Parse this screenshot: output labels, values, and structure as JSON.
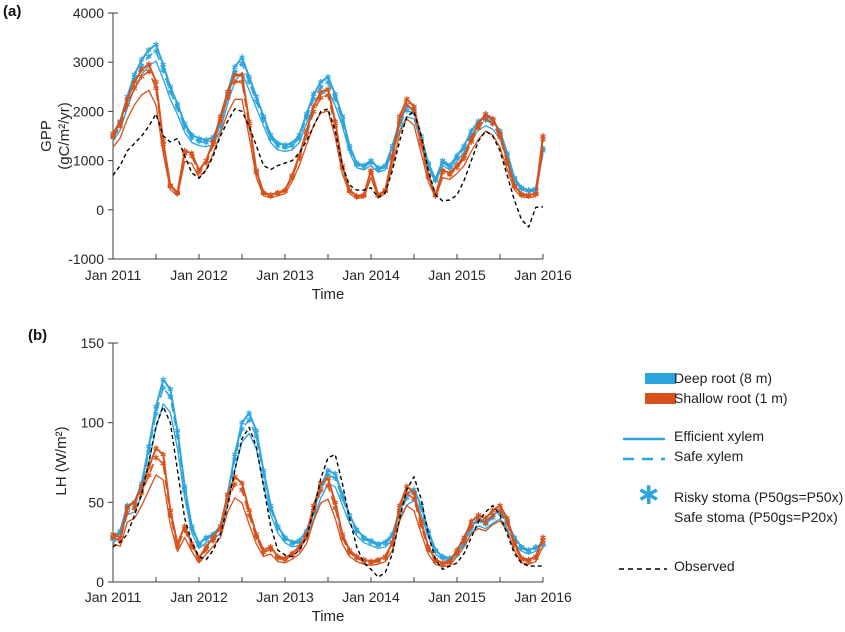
{
  "figure": {
    "panel_a_label": "(a)",
    "panel_b_label": "(b)"
  },
  "colors": {
    "deep_root_blue": "#2CA5DE",
    "shallow_root_orange": "#D5521C",
    "observed_black": "#000000",
    "axis_gray": "#3d3d3d",
    "tick_text": "#262626"
  },
  "legend": {
    "deep_root": "Deep root (8 m)",
    "shallow_root": "Shallow root  (1 m)",
    "efficient_xylem": "Efficient xylem",
    "safe_xylem": "Safe xylem",
    "risky_stoma": "Risky stoma (P50gs=P50x)",
    "safe_stoma": "Safe stoma (P50gs=P20x)",
    "observed": "Observed",
    "asterisk_glyph": "∗"
  },
  "chart_data": [
    {
      "type": "line",
      "panel": "a",
      "ylabel_line1": "GPP",
      "ylabel_line2": "(gC/m²/yr)",
      "ylabel": "GPP (gC/m²/yr)",
      "xlabel": "Time",
      "x_tick_labels": [
        "Jan 2011",
        "Jan 2012",
        "Jan 2013",
        "Jan 2014",
        "Jan 2015",
        "Jan 2016"
      ],
      "x_minor_tick_every_months": 6,
      "x_total_months": 60,
      "ylim": [
        -1000,
        4000
      ],
      "yticks": [
        4000,
        3000,
        2000,
        1000,
        0,
        -1000
      ],
      "grid": false,
      "series": [
        {
          "id": "deep-safe-stoma",
          "name": "Deep root, efficient xylem, safe stoma",
          "color": "deep_root_blue",
          "style": "solid",
          "marker": "none",
          "width": 1.3,
          "derive_from": "deep-risky",
          "scale": 0.9
        },
        {
          "id": "deep-safexylem-risky",
          "name": "Deep root, safe xylem, risky stoma",
          "color": "deep_root_blue",
          "style": "dashed",
          "marker": "asterisk",
          "width": 1.6,
          "derive_from": "deep-risky",
          "scale": 0.96
        },
        {
          "id": "deep-risky",
          "name": "Deep root, efficient xylem, risky stoma",
          "color": "deep_root_blue",
          "style": "solid",
          "marker": "asterisk",
          "width": 2,
          "values": [
            1550,
            1800,
            2300,
            2750,
            3050,
            3250,
            3360,
            2950,
            2500,
            2150,
            1750,
            1520,
            1450,
            1420,
            1480,
            1800,
            2400,
            2900,
            3100,
            2700,
            2300,
            1900,
            1520,
            1350,
            1320,
            1350,
            1520,
            1950,
            2350,
            2600,
            2700,
            2350,
            1900,
            1300,
            950,
            900,
            1000,
            850,
            900,
            1300,
            1800,
            2100,
            2050,
            1500,
            950,
            620,
            1000,
            900,
            1100,
            1300,
            1600,
            1800,
            1900,
            1820,
            1600,
            1150,
            650,
            450,
            400,
            430,
            1250
          ]
        },
        {
          "id": "shal-safe-stoma",
          "name": "Shallow root, efficient xylem, safe stoma",
          "color": "shallow_root_orange",
          "style": "solid",
          "marker": "none",
          "width": 1.3,
          "derive_from": "shal-risky",
          "scale": 0.82
        },
        {
          "id": "shal-safexylem-risky",
          "name": "Shallow root, safe xylem, risky stoma",
          "color": "shallow_root_orange",
          "style": "dashed",
          "marker": "asterisk",
          "width": 1.6,
          "derive_from": "shal-risky",
          "scale": 0.95
        },
        {
          "id": "shal-risky",
          "name": "Shallow root, efficient xylem, risky stoma",
          "color": "shallow_root_orange",
          "style": "solid",
          "marker": "asterisk",
          "width": 2,
          "values": [
            1550,
            1780,
            2250,
            2600,
            2850,
            2960,
            2600,
            1400,
            500,
            350,
            1200,
            1150,
            800,
            1000,
            1400,
            1900,
            2400,
            2740,
            2740,
            1800,
            800,
            350,
            300,
            350,
            400,
            700,
            1100,
            1600,
            2100,
            2400,
            2450,
            1800,
            900,
            400,
            280,
            300,
            800,
            300,
            400,
            1100,
            1900,
            2250,
            2100,
            1400,
            700,
            300,
            800,
            750,
            900,
            1100,
            1450,
            1750,
            1950,
            1850,
            1550,
            1000,
            500,
            320,
            300,
            330,
            1500
          ]
        },
        {
          "id": "obs-gpp",
          "name": "Observed",
          "color": "observed_black",
          "style": "short-dash",
          "marker": "none",
          "width": 1.4,
          "values": [
            700,
            900,
            1200,
            1350,
            1500,
            1700,
            1950,
            1500,
            1380,
            1450,
            1100,
            750,
            640,
            800,
            1100,
            1500,
            1800,
            2050,
            2000,
            1700,
            1300,
            900,
            820,
            900,
            950,
            1000,
            1150,
            1400,
            1700,
            2000,
            2050,
            1600,
            900,
            500,
            400,
            400,
            450,
            250,
            350,
            800,
            1400,
            1900,
            2000,
            1500,
            800,
            300,
            180,
            200,
            300,
            600,
            1000,
            1400,
            1600,
            1500,
            1200,
            700,
            200,
            -200,
            -350,
            50,
            60
          ]
        }
      ]
    },
    {
      "type": "line",
      "panel": "b",
      "ylabel": "LH (W/m²)",
      "xlabel": "Time",
      "x_tick_labels": [
        "Jan 2011",
        "Jan 2012",
        "Jan 2013",
        "Jan 2014",
        "Jan 2015",
        "Jan 2016"
      ],
      "x_minor_tick_every_months": 6,
      "x_total_months": 60,
      "ylim": [
        0,
        150
      ],
      "yticks": [
        150,
        100,
        50,
        0
      ],
      "grid": false,
      "series": [
        {
          "id": "deep-safe-stoma-lh",
          "name": "Deep root, efficient xylem, safe stoma",
          "color": "deep_root_blue",
          "style": "solid",
          "marker": "none",
          "width": 1.3,
          "derive_from": "deep-risky-lh",
          "scale": 0.88
        },
        {
          "id": "deep-safexylem-risky-lh",
          "name": "Deep root, safe xylem, risky stoma",
          "color": "deep_root_blue",
          "style": "dashed",
          "marker": "asterisk",
          "width": 1.6,
          "derive_from": "deep-risky-lh",
          "scale": 0.96
        },
        {
          "id": "deep-risky-lh",
          "name": "Deep root, efficient xylem, risky stoma",
          "color": "deep_root_blue",
          "style": "solid",
          "marker": "asterisk",
          "width": 2,
          "values": [
            28,
            32,
            48,
            50,
            62,
            85,
            110,
            127,
            121,
            95,
            60,
            35,
            24,
            28,
            30,
            35,
            55,
            80,
            100,
            106,
            95,
            70,
            48,
            35,
            28,
            25,
            26,
            32,
            45,
            60,
            70,
            68,
            55,
            42,
            33,
            28,
            26,
            24,
            25,
            30,
            45,
            55,
            58,
            48,
            32,
            20,
            16,
            15,
            18,
            25,
            35,
            40,
            38,
            42,
            45,
            38,
            28,
            22,
            20,
            22,
            24
          ]
        },
        {
          "id": "shal-safe-stoma-lh",
          "name": "Shallow root, efficient xylem, safe stoma",
          "color": "shallow_root_orange",
          "style": "solid",
          "marker": "none",
          "width": 1.3,
          "derive_from": "shal-risky-lh",
          "scale": 0.8
        },
        {
          "id": "shal-safexylem-risky-lh",
          "name": "Shallow root, safe xylem, risky stoma",
          "color": "shallow_root_orange",
          "style": "dashed",
          "marker": "asterisk",
          "width": 1.6,
          "derive_from": "shal-risky-lh",
          "scale": 0.93
        },
        {
          "id": "shal-risky-lh",
          "name": "Shallow root, efficient xylem, risky stoma",
          "color": "shallow_root_orange",
          "style": "solid",
          "marker": "asterisk",
          "width": 2,
          "values": [
            30,
            28,
            47,
            50,
            60,
            72,
            84,
            80,
            45,
            24,
            35,
            24,
            15,
            22,
            28,
            35,
            55,
            66,
            62,
            45,
            30,
            20,
            22,
            16,
            15,
            18,
            22,
            30,
            48,
            62,
            65,
            50,
            30,
            20,
            16,
            14,
            13,
            14,
            16,
            25,
            48,
            60,
            56,
            38,
            22,
            14,
            12,
            13,
            20,
            28,
            38,
            42,
            40,
            45,
            48,
            40,
            25,
            15,
            14,
            16,
            28
          ]
        },
        {
          "id": "obs-lh",
          "name": "Observed",
          "color": "observed_black",
          "style": "short-dash",
          "marker": "none",
          "width": 1.4,
          "values": [
            22,
            25,
            30,
            42,
            55,
            75,
            98,
            110,
            100,
            70,
            40,
            25,
            16,
            14,
            20,
            30,
            48,
            70,
            90,
            97,
            85,
            60,
            35,
            20,
            17,
            16,
            20,
            28,
            45,
            65,
            78,
            80,
            62,
            40,
            22,
            12,
            8,
            3,
            6,
            18,
            40,
            58,
            66,
            52,
            30,
            14,
            8,
            10,
            12,
            18,
            28,
            38,
            44,
            48,
            42,
            30,
            18,
            12,
            10,
            10,
            10
          ]
        }
      ]
    }
  ]
}
